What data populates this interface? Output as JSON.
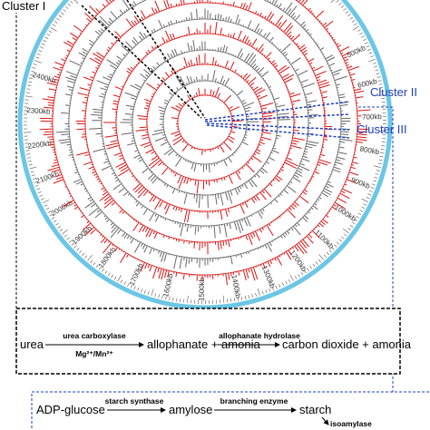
{
  "clusters": [
    "Cluster I",
    "Cluster II",
    "Cluster III"
  ],
  "positions": [
    "500kb",
    "600kb",
    "700kb",
    "800kb",
    "900kb",
    "1000kb",
    "1100kb",
    "1200kb",
    "1300kb",
    "1400kb",
    "1500kb",
    "1600kb",
    "1700kb",
    "1800kb",
    "1900kb",
    "2000kb",
    "2100kb",
    "2200kb",
    "2300kb",
    "2400kb"
  ],
  "urea_pathway": {
    "substrate": "urea",
    "enzyme1": "urea carboxylase",
    "cofactor": "Mg²⁺/Mn²⁺",
    "intermediate": "allophanate + amonia",
    "enzyme2": "allophanate hydrolase",
    "product": "carbon dioxide + amonia"
  },
  "starch_pathway": {
    "substrate": "ADP-glucose",
    "enzyme1": "starch synthase",
    "intermediate": "amylose",
    "enzyme2": "branching enzyme",
    "product": "starch",
    "enzyme3": "isoamylase"
  }
}
